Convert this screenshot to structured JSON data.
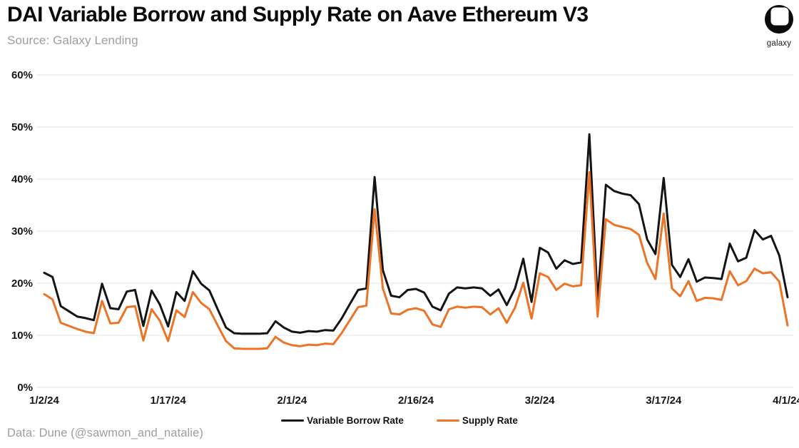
{
  "header": {
    "title": "DAI Variable Borrow and Supply Rate on Aave Ethereum V3",
    "source": "Source: Galaxy Lending"
  },
  "logo": {
    "label": "galaxy"
  },
  "footer": {
    "credit": "Data: Dune (@sawmon_and_natalie)"
  },
  "legend": {
    "items": [
      {
        "label": "Variable Borrow Rate",
        "color": "#141414"
      },
      {
        "label": "Supply Rate",
        "color": "#ED7326"
      }
    ]
  },
  "chart_data": {
    "type": "line",
    "title": "DAI Variable Borrow and Supply Rate on Aave Ethereum V3",
    "xlabel": "",
    "ylabel": "",
    "ylim": [
      0,
      60
    ],
    "grid": "horizontal",
    "legend_position": "bottom",
    "yticks": [
      {
        "value": 0,
        "label": "0%"
      },
      {
        "value": 10,
        "label": "10%"
      },
      {
        "value": 20,
        "label": "20%"
      },
      {
        "value": 30,
        "label": "30%"
      },
      {
        "value": 40,
        "label": "40%"
      },
      {
        "value": 50,
        "label": "50%"
      },
      {
        "value": 60,
        "label": "60%"
      }
    ],
    "xticks": [
      {
        "index": 0,
        "label": "1/2/24"
      },
      {
        "index": 15,
        "label": "1/17/24"
      },
      {
        "index": 30,
        "label": "2/1/24"
      },
      {
        "index": 45,
        "label": "2/16/24"
      },
      {
        "index": 60,
        "label": "3/2/24"
      },
      {
        "index": 75,
        "label": "3/17/24"
      },
      {
        "index": 90,
        "label": "4/1/24"
      }
    ],
    "x_dates": [
      "1/2/24",
      "1/3/24",
      "1/4/24",
      "1/5/24",
      "1/6/24",
      "1/7/24",
      "1/8/24",
      "1/9/24",
      "1/10/24",
      "1/11/24",
      "1/12/24",
      "1/13/24",
      "1/14/24",
      "1/15/24",
      "1/16/24",
      "1/17/24",
      "1/18/24",
      "1/19/24",
      "1/20/24",
      "1/21/24",
      "1/22/24",
      "1/23/24",
      "1/24/24",
      "1/25/24",
      "1/26/24",
      "1/27/24",
      "1/28/24",
      "1/29/24",
      "1/30/24",
      "1/31/24",
      "2/1/24",
      "2/2/24",
      "2/3/24",
      "2/4/24",
      "2/5/24",
      "2/6/24",
      "2/7/24",
      "2/8/24",
      "2/9/24",
      "2/10/24",
      "2/11/24",
      "2/12/24",
      "2/13/24",
      "2/14/24",
      "2/15/24",
      "2/16/24",
      "2/17/24",
      "2/18/24",
      "2/19/24",
      "2/20/24",
      "2/21/24",
      "2/22/24",
      "2/23/24",
      "2/24/24",
      "2/25/24",
      "2/26/24",
      "2/27/24",
      "2/28/24",
      "2/29/24",
      "3/1/24",
      "3/2/24",
      "3/3/24",
      "3/4/24",
      "3/5/24",
      "3/6/24",
      "3/7/24",
      "3/8/24",
      "3/9/24",
      "3/10/24",
      "3/11/24",
      "3/12/24",
      "3/13/24",
      "3/14/24",
      "3/15/24",
      "3/16/24",
      "3/17/24",
      "3/18/24",
      "3/19/24",
      "3/20/24",
      "3/21/24",
      "3/22/24",
      "3/23/24",
      "3/24/24",
      "3/25/24",
      "3/26/24",
      "3/27/24",
      "3/28/24",
      "3/29/24",
      "3/30/24",
      "3/31/24",
      "4/1/24"
    ],
    "series": [
      {
        "name": "Variable Borrow Rate",
        "color": "#141414",
        "values": [
          22.0,
          21.2,
          15.6,
          14.6,
          13.6,
          13.3,
          12.9,
          19.9,
          15.2,
          15.0,
          18.4,
          18.7,
          11.8,
          18.6,
          15.9,
          11.7,
          18.3,
          16.6,
          22.3,
          19.9,
          18.6,
          15.0,
          11.5,
          10.4,
          10.3,
          10.3,
          10.3,
          10.4,
          12.7,
          11.5,
          10.7,
          10.5,
          10.8,
          10.7,
          11.0,
          10.9,
          13.2,
          16.0,
          18.7,
          19.0,
          40.4,
          22.5,
          17.6,
          17.3,
          18.7,
          18.9,
          18.2,
          15.5,
          14.8,
          18.0,
          19.2,
          19.0,
          19.2,
          19.0,
          17.6,
          18.8,
          15.8,
          19.0,
          24.7,
          16.4,
          26.8,
          25.9,
          22.8,
          24.4,
          23.7,
          24.0,
          48.6,
          16.4,
          38.9,
          37.7,
          37.2,
          36.9,
          35.2,
          28.4,
          25.6,
          40.2,
          23.5,
          21.2,
          24.6,
          20.3,
          21.1,
          21.0,
          20.8,
          27.6,
          24.2,
          24.9,
          30.2,
          28.4,
          29.1,
          25.3,
          17.3
        ]
      },
      {
        "name": "Supply Rate",
        "color": "#ED7326",
        "values": [
          17.9,
          16.9,
          12.4,
          11.8,
          11.2,
          10.7,
          10.4,
          16.6,
          12.3,
          12.4,
          15.4,
          15.6,
          9.0,
          15.0,
          12.8,
          8.9,
          14.8,
          13.5,
          18.3,
          16.2,
          15.0,
          11.9,
          8.9,
          7.5,
          7.4,
          7.4,
          7.4,
          7.5,
          9.7,
          8.6,
          8.1,
          7.9,
          8.2,
          8.1,
          8.4,
          8.3,
          10.4,
          12.9,
          15.4,
          15.7,
          34.2,
          19.0,
          14.2,
          14.0,
          14.9,
          15.2,
          14.7,
          12.1,
          11.6,
          15.0,
          15.5,
          15.3,
          15.5,
          15.4,
          14.0,
          15.2,
          12.4,
          15.3,
          20.1,
          13.2,
          21.9,
          21.2,
          18.7,
          19.9,
          19.4,
          19.6,
          41.3,
          13.6,
          32.3,
          31.2,
          30.8,
          30.4,
          29.3,
          23.9,
          20.8,
          33.4,
          19.0,
          17.5,
          20.4,
          16.6,
          17.2,
          17.1,
          16.8,
          22.3,
          19.6,
          20.4,
          22.8,
          21.9,
          22.1,
          20.3,
          11.9
        ]
      }
    ]
  }
}
